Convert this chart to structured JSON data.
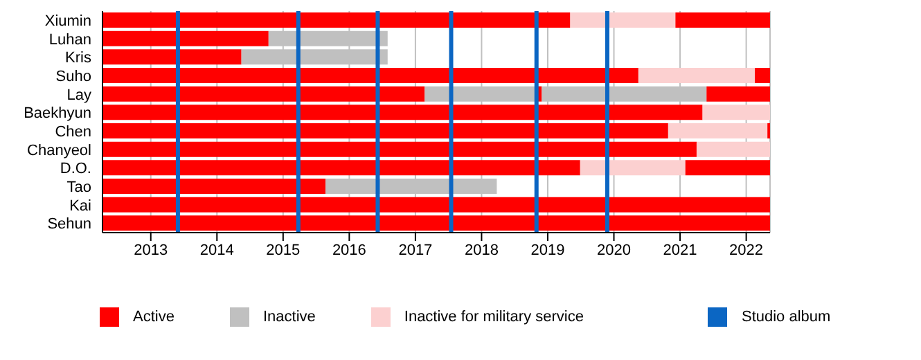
{
  "chart_data": {
    "type": "bar",
    "orientation": "horizontal",
    "categories": [
      "Xiumin",
      "Luhan",
      "Kris",
      "Suho",
      "Lay",
      "Baekhyun",
      "Chen",
      "Chanyeol",
      "D.O.",
      "Tao",
      "Kai",
      "Sehun"
    ],
    "series": [
      {
        "name": "Active",
        "color": "#ff0000",
        "base": [
          2012.27,
          2012.27,
          2012.27,
          2012.27,
          2012.27,
          2012.27,
          2012.27,
          2012.27,
          2012.27,
          2012.27,
          2012.27,
          2012.27
        ],
        "values": [
          7.07,
          2.51,
          2.1,
          8.1,
          4.87,
          9.07,
          8.55,
          8.98,
          7.22,
          3.37,
          10.09,
          10.09
        ]
      },
      {
        "name": "Inactive",
        "color": "#c0c0c0",
        "base": [
          null,
          2014.78,
          2014.37,
          null,
          2017.14,
          null,
          null,
          null,
          null,
          2015.64,
          null,
          null
        ],
        "values": [
          null,
          1.8,
          2.21,
          null,
          1.69,
          null,
          null,
          null,
          null,
          2.59,
          null,
          null
        ]
      },
      {
        "name": "Inactive for military service",
        "color": "#fcd0d0",
        "base": [
          2019.34,
          null,
          null,
          2020.37,
          null,
          2021.34,
          2020.82,
          2021.25,
          2019.49,
          null,
          null,
          null
        ],
        "values": [
          1.59,
          null,
          null,
          1.76,
          null,
          1.02,
          1.5,
          1.11,
          1.59,
          null,
          null,
          null
        ]
      },
      {
        "color": "#ff0000",
        "base": [
          2020.93,
          null,
          null,
          2022.13,
          2018.83,
          null,
          2022.32,
          null,
          2021.08,
          null,
          null,
          null
        ],
        "values": [
          1.43,
          null,
          null,
          0.23,
          0.08,
          null,
          0.04,
          null,
          1.28,
          null,
          null,
          null
        ]
      },
      {
        "color": "#c0c0c0",
        "base": [
          null,
          null,
          null,
          null,
          2018.91,
          null,
          null,
          null,
          null,
          null,
          null,
          null
        ],
        "values": [
          null,
          null,
          null,
          null,
          2.49,
          null,
          null,
          null,
          null,
          null,
          null,
          null
        ]
      },
      {
        "color": "#ff0000",
        "base": [
          null,
          null,
          null,
          null,
          2021.4,
          null,
          null,
          null,
          null,
          null,
          null,
          null
        ],
        "values": [
          null,
          null,
          null,
          null,
          0.96,
          null,
          null,
          null,
          null,
          null,
          null,
          null
        ]
      }
    ],
    "xlim": [
      2012.27,
      2022.36
    ],
    "xticks": [
      2013,
      2014,
      2015,
      2016,
      2017,
      2018,
      2019,
      2020,
      2021,
      2022
    ],
    "grid": "x",
    "legend": "bottom",
    "ref_lines": [
      {
        "axis": "x",
        "value": 2013.41,
        "label": "Studio album",
        "color": "#0b66c3"
      },
      {
        "axis": "x",
        "value": 2015.23,
        "color": "#0b66c3"
      },
      {
        "axis": "x",
        "value": 2016.43,
        "color": "#0b66c3"
      },
      {
        "axis": "x",
        "value": 2017.54,
        "color": "#0b66c3"
      },
      {
        "axis": "x",
        "value": 2018.83,
        "color": "#0b66c3"
      },
      {
        "axis": "x",
        "value": 2019.9,
        "color": "#0b66c3"
      }
    ]
  }
}
